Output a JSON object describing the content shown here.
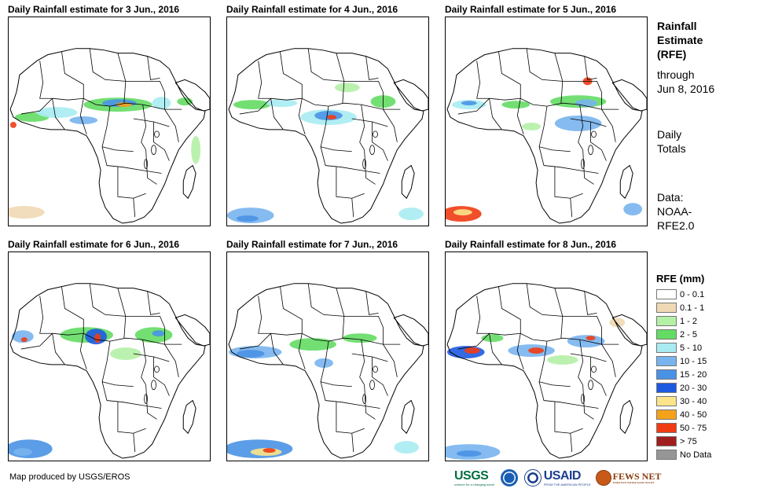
{
  "panels": [
    {
      "title": "Daily Rainfall estimate for 3 Jun., 2016",
      "day": 3
    },
    {
      "title": "Daily Rainfall estimate for 4 Jun., 2016",
      "day": 4
    },
    {
      "title": "Daily Rainfall estimate for 5 Jun., 2016",
      "day": 5
    },
    {
      "title": "Daily Rainfall estimate for 6 Jun., 2016",
      "day": 6
    },
    {
      "title": "Daily Rainfall estimate for 7 Jun., 2016",
      "day": 7
    },
    {
      "title": "Daily Rainfall estimate for 8 Jun., 2016",
      "day": 8
    }
  ],
  "side": {
    "title_line1": "Rainfall",
    "title_line2": "Estimate",
    "title_line3": "(RFE)",
    "through_line1": "through",
    "through_line2": "Jun 8, 2016",
    "totals_line1": "Daily",
    "totals_line2": "Totals",
    "data_line1": "Data:",
    "data_line2": "NOAA-",
    "data_line3": "RFE2.0"
  },
  "legend": {
    "title": "RFE (mm)",
    "items": [
      {
        "label": "0 - 0.1",
        "color": "#ffffff"
      },
      {
        "label": "0.1 - 1",
        "color": "#efd8b4"
      },
      {
        "label": "1 - 2",
        "color": "#b4f0a6"
      },
      {
        "label": "2 - 5",
        "color": "#64dc64"
      },
      {
        "label": "5 - 10",
        "color": "#a8ecf2"
      },
      {
        "label": "10 - 15",
        "color": "#78b4ee"
      },
      {
        "label": "15 - 20",
        "color": "#4a92e6"
      },
      {
        "label": "20 - 30",
        "color": "#1e5ae0"
      },
      {
        "label": "30 - 40",
        "color": "#fbe48a"
      },
      {
        "label": "40 - 50",
        "color": "#f5a21a"
      },
      {
        "label": "50 - 75",
        "color": "#f03c14"
      },
      {
        "label": "> 75",
        "color": "#a01e1e"
      },
      {
        "label": "No Data",
        "color": "#969696"
      }
    ]
  },
  "credit": "Map produced by USGS/EROS",
  "logos": {
    "usgs": "USGS",
    "usgs_tagline": "science for a changing world",
    "usaid": "USAID",
    "usaid_tagline": "FROM THE AMERICAN PEOPLE",
    "fews": "FEWS NET",
    "fews_tagline": "Famine Early Warning Systems Network"
  }
}
